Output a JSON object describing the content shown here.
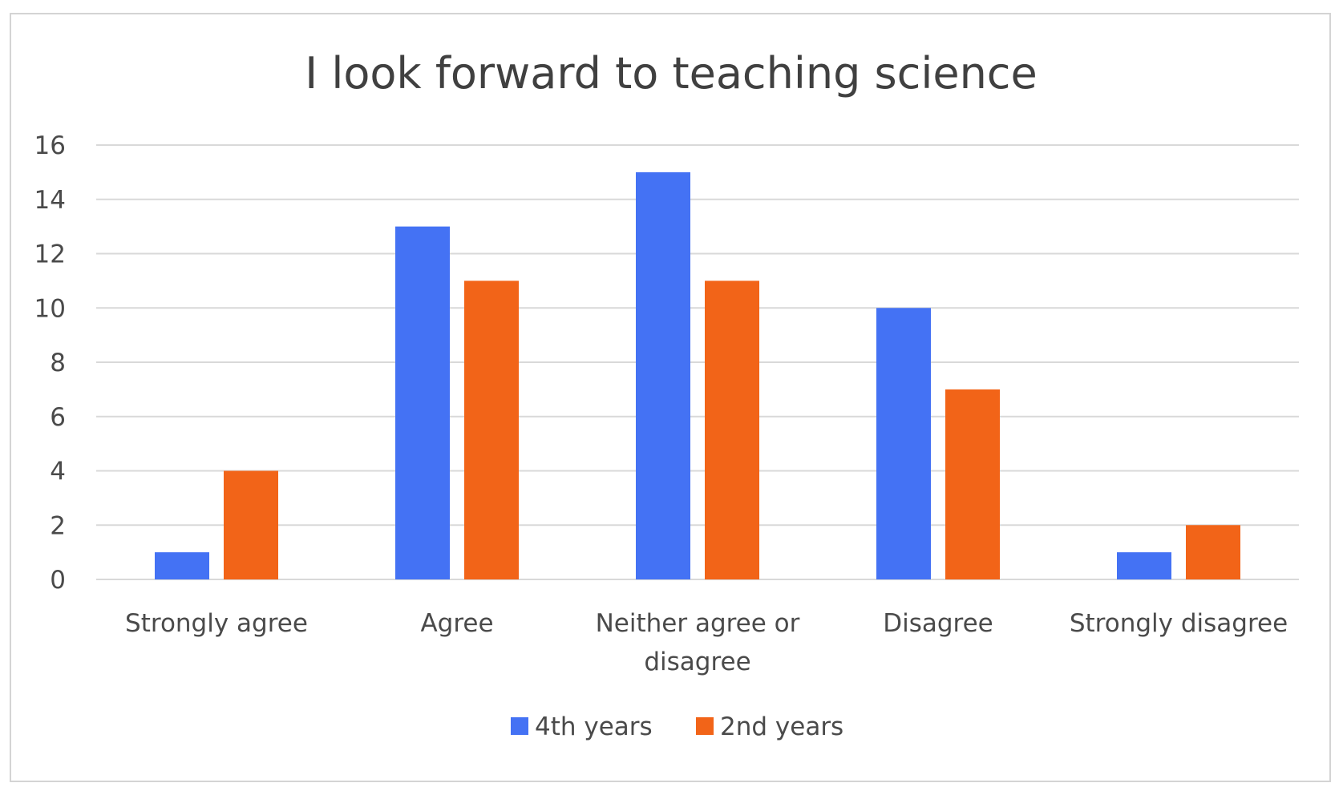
{
  "chart_data": {
    "type": "bar",
    "title": "I look forward to teaching science",
    "categories": [
      [
        "Strongly agree"
      ],
      [
        "Agree"
      ],
      [
        "Neither agree or",
        "disagree"
      ],
      [
        "Disagree"
      ],
      [
        "Strongly disagree"
      ]
    ],
    "series": [
      {
        "name": "4th years",
        "color": "#4472f4",
        "values": [
          1,
          13,
          15,
          10,
          1
        ]
      },
      {
        "name": "2nd years",
        "color": "#f26418",
        "values": [
          4,
          11,
          11,
          7,
          2
        ]
      }
    ],
    "yticks": [
      "0",
      "2",
      "4",
      "6",
      "8",
      "10",
      "12",
      "14",
      "16"
    ],
    "ylim": [
      0,
      16
    ],
    "grid": true,
    "legend": "bottom"
  }
}
